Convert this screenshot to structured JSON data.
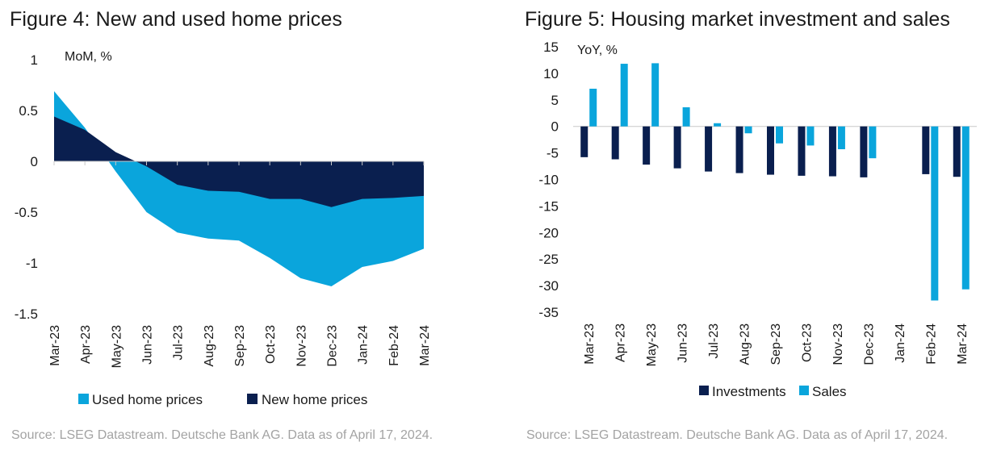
{
  "colors": {
    "navy": "#0a1f4f",
    "cyan": "#0aa5dc",
    "axis": "#c8c8c8",
    "text": "#1a1a1a",
    "source": "#a3a3a3"
  },
  "figure4": {
    "title": "Figure 4: New and used home prices",
    "source": "Source: LSEG Datastream. Deutsche Bank AG. Data as of April 17, 2024."
  },
  "figure5": {
    "title": "Figure 5: Housing market investment and sales",
    "source": "Source: LSEG Datastream. Deutsche Bank AG. Data as of April 17, 2024."
  },
  "chart_data": [
    {
      "type": "area",
      "title": "Figure 4: New and used home prices",
      "ylabel": "MoM, %",
      "xlabel": "",
      "ylim": [
        -1.5,
        1
      ],
      "yticks": [
        1,
        0.5,
        0,
        -0.5,
        -1,
        -1.5
      ],
      "ytick_labels": [
        "1",
        "0.5",
        "0",
        "-0.5",
        "-1",
        "-1.5"
      ],
      "grid": false,
      "legend_position": "bottom",
      "categories": [
        "Mar-23",
        "Apr-23",
        "May-23",
        "Jun-23",
        "Jul-23",
        "Aug-23",
        "Sep-23",
        "Oct-23",
        "Nov-23",
        "Dec-23",
        "Jan-24",
        "Feb-24",
        "Mar-24"
      ],
      "series": [
        {
          "name": "Used home prices",
          "color": "#0aa5dc",
          "values": [
            0.69,
            0.33,
            -0.1,
            -0.5,
            -0.7,
            -0.76,
            -0.78,
            -0.95,
            -1.15,
            -1.23,
            -1.04,
            -0.98,
            -0.86
          ]
        },
        {
          "name": "New home prices",
          "color": "#0a1f4f",
          "values": [
            0.44,
            0.31,
            0.09,
            -0.05,
            -0.23,
            -0.29,
            -0.3,
            -0.37,
            -0.37,
            -0.45,
            -0.37,
            -0.36,
            -0.34
          ]
        }
      ]
    },
    {
      "type": "bar",
      "title": "Figure 5: Housing market investment and sales",
      "ylabel": "YoY, %",
      "xlabel": "",
      "ylim": [
        -35,
        15
      ],
      "yticks": [
        15,
        10,
        5,
        0,
        -5,
        -10,
        -15,
        -20,
        -25,
        -30,
        -35
      ],
      "ytick_labels": [
        "15",
        "10",
        "5",
        "0",
        "-5",
        "-10",
        "-15",
        "-20",
        "-25",
        "-30",
        "-35"
      ],
      "grid": false,
      "legend_position": "bottom",
      "categories": [
        "Mar-23",
        "Apr-23",
        "May-23",
        "Jun-23",
        "Jul-23",
        "Aug-23",
        "Sep-23",
        "Oct-23",
        "Nov-23",
        "Dec-23",
        "Jan-24",
        "Feb-24",
        "Mar-24"
      ],
      "series": [
        {
          "name": "Investments",
          "color": "#0a1f4f",
          "values": [
            -5.8,
            -6.2,
            -7.2,
            -7.9,
            -8.5,
            -8.8,
            -9.1,
            -9.3,
            -9.4,
            -9.6,
            null,
            -9.0,
            -9.5
          ]
        },
        {
          "name": "Sales",
          "color": "#0aa5dc",
          "values": [
            7.1,
            11.8,
            11.9,
            3.6,
            0.6,
            -1.3,
            -3.2,
            -3.6,
            -4.3,
            -6.0,
            null,
            -32.8,
            -30.7
          ]
        }
      ]
    }
  ]
}
